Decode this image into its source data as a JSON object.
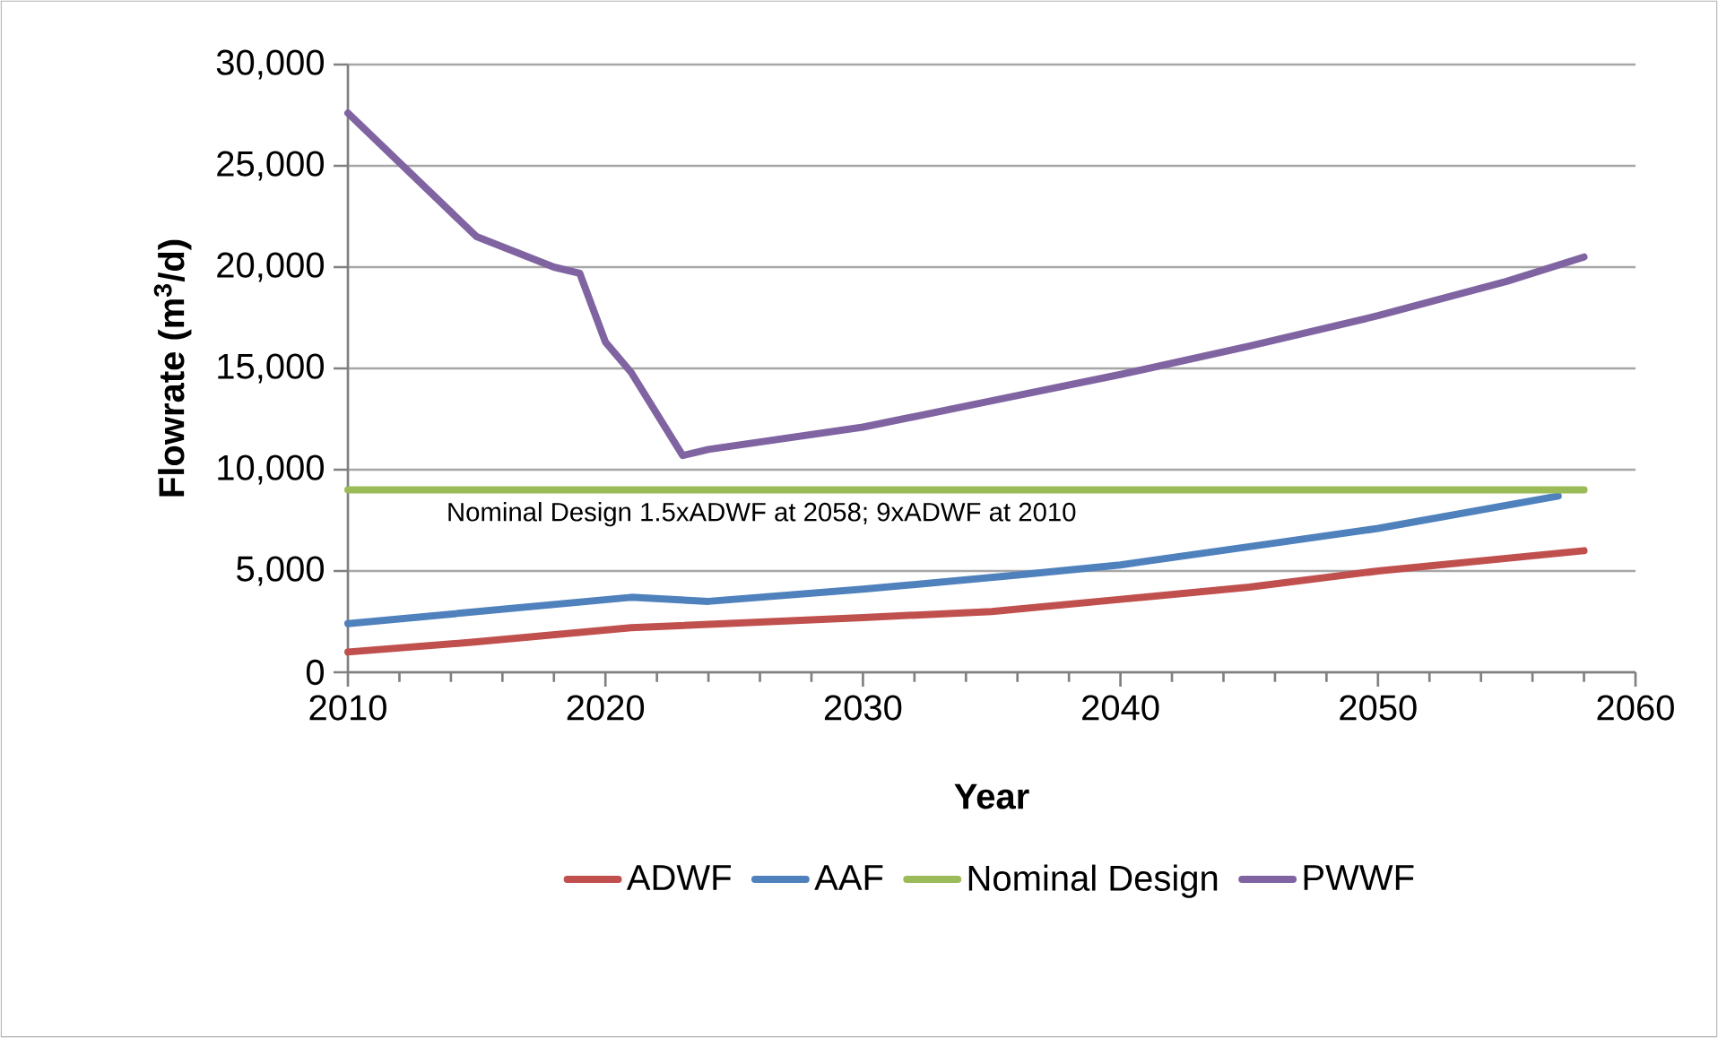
{
  "chart_data": {
    "type": "line",
    "xlabel": "Year",
    "ylabel": "Flowrate (m$^{3}$/d)",
    "xlim": [
      2010,
      2060
    ],
    "xticks": [
      2010,
      2020,
      2030,
      2040,
      2050,
      2060
    ],
    "ylim": [
      0,
      30000
    ],
    "yticks": [
      0,
      {
        "value": 5000,
        "label": "5,000"
      },
      {
        "value": 10000,
        "label": "10,000"
      },
      {
        "value": 15000,
        "label": "15,000"
      },
      {
        "value": 20000,
        "label": "20,000"
      },
      {
        "value": 25000,
        "label": "25,000"
      },
      {
        "value": 30000,
        "label": "30,000"
      }
    ],
    "grid": "y",
    "legend": "bottom",
    "marker": "none",
    "line_style": "solid",
    "annotations": [
      "Nominal Design 1.5xADWF at 2058; 9xADWF at 2010"
    ],
    "series": [
      {
        "name": "ADWF",
        "color": "#c0504d",
        "x": [
          2010,
          2015,
          2021,
          2030,
          2035,
          2040,
          2045,
          2050,
          2058
        ],
        "values": [
          1000,
          1500,
          2200,
          2700,
          3000,
          3600,
          4200,
          5000,
          6000
        ]
      },
      {
        "name": "AAF",
        "color": "#4f81bd",
        "x": [
          2010,
          2021,
          2024,
          2030,
          2036,
          2040,
          2045,
          2050,
          2057
        ],
        "values": [
          2400,
          3700,
          3500,
          4100,
          4800,
          5300,
          6200,
          7100,
          8700
        ]
      },
      {
        "name": "Nominal Design",
        "color": "#9bbb59",
        "x": [
          2010,
          2058
        ],
        "values": [
          9000,
          9000
        ]
      },
      {
        "name": "PWWF",
        "color": "#8064a2",
        "x": [
          2010,
          2015,
          2018,
          2019,
          2020,
          2021,
          2023,
          2024,
          2030,
          2035,
          2040,
          2045,
          2050,
          2055,
          2058
        ],
        "values": [
          27600,
          21500,
          20000,
          19700,
          16300,
          14800,
          10700,
          11000,
          12100,
          13400,
          14700,
          16100,
          17600,
          19300,
          20500
        ]
      }
    ]
  }
}
